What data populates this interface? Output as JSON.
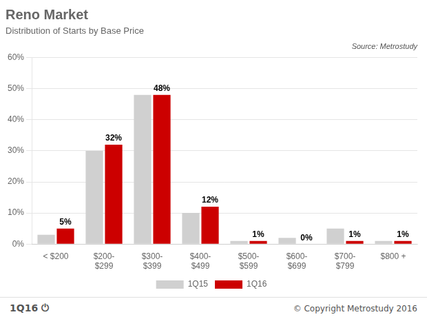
{
  "chart_data": {
    "type": "bar",
    "title": "Reno Market",
    "subtitle": "Distribution of Starts by Base Price",
    "annotations": [
      "Source: Metrostudy",
      "1Q16",
      "⏻",
      "© Copyright Metrostudy 2016"
    ],
    "categories": [
      "< $200",
      "$200-\n$299",
      "$300-\n$399",
      "$400-\n$499",
      "$500-\n$599",
      "$600-\n$699",
      "$700-\n$799",
      "$800 +"
    ],
    "series": [
      {
        "name": "1Q15",
        "color": "#d0d0d0",
        "values": [
          3,
          30,
          48,
          10,
          1,
          2,
          5,
          1
        ]
      },
      {
        "name": "1Q16",
        "color": "#cc0000",
        "values": [
          5,
          32,
          48,
          12,
          1,
          0,
          1,
          1
        ],
        "data_labels": true,
        "value_labels": [
          "5%",
          "32%",
          "48%",
          "12%",
          "1%",
          "0%",
          "1%",
          "1%"
        ]
      }
    ],
    "ylim": [
      0,
      60
    ],
    "yticks": [
      {
        "value": 0,
        "label": "0%"
      },
      {
        "value": 10,
        "label": "10%"
      },
      {
        "value": 20,
        "label": "20%"
      },
      {
        "value": 30,
        "label": "30%"
      },
      {
        "value": 40,
        "label": "40%"
      },
      {
        "value": 50,
        "label": "50%"
      },
      {
        "value": 60,
        "label": "60%"
      }
    ],
    "grid": true,
    "legend": "bottom"
  }
}
